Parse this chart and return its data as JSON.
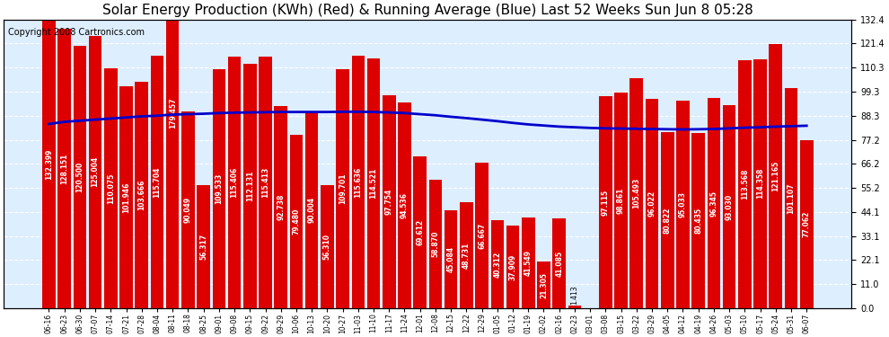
{
  "title": "Solar Energy Production (KWh) (Red) & Running Average (Blue) Last 52 Weeks Sun Jun 8 05:28",
  "copyright": "Copyright 2008 Cartronics.com",
  "bar_color": "#dd0000",
  "line_color": "#0000cc",
  "background_color": "#ffffff",
  "plot_bg_color": "#ddeeff",
  "grid_color": "#ffffff",
  "categories": [
    "06-16",
    "06-23",
    "06-30",
    "07-07",
    "07-14",
    "07-21",
    "07-28",
    "08-04",
    "08-11",
    "08-18",
    "08-25",
    "09-01",
    "09-08",
    "09-15",
    "09-22",
    "09-29",
    "10-06",
    "10-13",
    "10-20",
    "10-27",
    "11-03",
    "11-10",
    "11-17",
    "11-24",
    "12-01",
    "12-08",
    "12-15",
    "12-22",
    "12-29",
    "01-05",
    "01-12",
    "01-19",
    "02-02",
    "02-16",
    "02-23",
    "03-01",
    "03-08",
    "03-15",
    "03-22",
    "03-29",
    "04-05",
    "04-12",
    "04-19",
    "04-26",
    "05-03",
    "05-10",
    "05-17",
    "05-24",
    "05-31",
    "06-07"
  ],
  "values": [
    132.399,
    128.151,
    120.5,
    125.004,
    110.075,
    101.946,
    103.666,
    115.704,
    179.457,
    90.049,
    56.317,
    109.533,
    115.406,
    112.131,
    115.413,
    92.738,
    79.48,
    90.004,
    56.31,
    109.701,
    115.636,
    114.521,
    97.754,
    94.536,
    69.612,
    58.87,
    45.084,
    48.731,
    66.667,
    40.312,
    37.909,
    41.549,
    21.305,
    41.085,
    1.413,
    0.0,
    97.115,
    98.861,
    105.493,
    96.022,
    80.822,
    95.033,
    80.435,
    96.345,
    93.03,
    113.568,
    114.358,
    121.165,
    101.107,
    77.062
  ],
  "running_avg": [
    84.5,
    85.5,
    86.0,
    86.5,
    87.0,
    87.5,
    88.0,
    88.3,
    88.8,
    89.0,
    89.2,
    89.5,
    89.7,
    89.8,
    89.9,
    90.0,
    90.0,
    90.0,
    90.0,
    90.1,
    90.1,
    90.0,
    89.8,
    89.5,
    89.0,
    88.5,
    87.8,
    87.2,
    86.5,
    85.8,
    85.0,
    84.3,
    83.8,
    83.3,
    83.0,
    82.7,
    82.5,
    82.4,
    82.3,
    82.2,
    82.1,
    82.0,
    82.1,
    82.2,
    82.5,
    82.8,
    83.0,
    83.3,
    83.5,
    83.7
  ],
  "ylim": [
    0.0,
    132.4
  ],
  "yticks": [
    0.0,
    11.0,
    22.1,
    33.1,
    44.1,
    55.2,
    66.2,
    77.2,
    88.3,
    99.3,
    110.3,
    121.4,
    132.4
  ],
  "title_fontsize": 11,
  "copyright_fontsize": 7,
  "label_fontsize": 5.5
}
